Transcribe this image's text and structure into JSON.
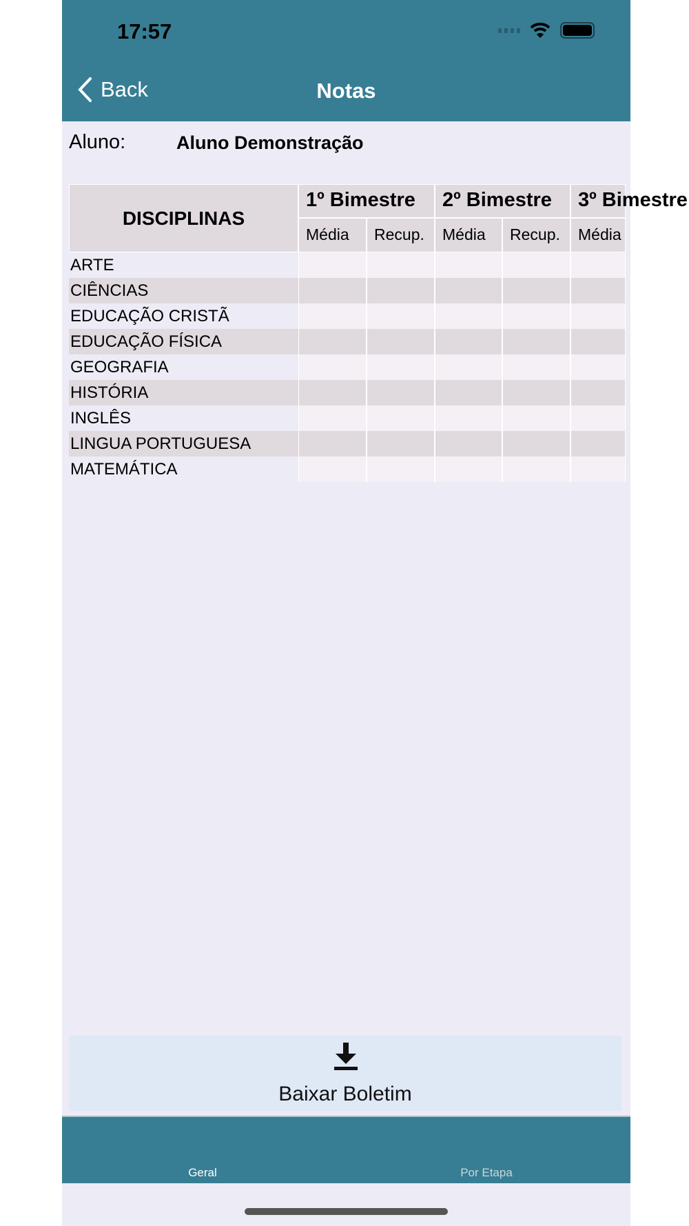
{
  "status_bar": {
    "time": "17:57"
  },
  "nav": {
    "back_label": "Back",
    "title": "Notas"
  },
  "student": {
    "label": "Aluno:",
    "name": "Aluno Demonstração"
  },
  "table": {
    "disciplinas_header": "DISCIPLINAS",
    "periods": [
      "1º Bimestre",
      "2º Bimestre",
      "3º Bimestre"
    ],
    "sub_headers": [
      "Média",
      "Recup.",
      "Média",
      "Recup.",
      "Média"
    ],
    "rows": [
      "ARTE",
      "CIÊNCIAS",
      "EDUCAÇÃO CRISTÃ",
      "EDUCAÇÃO FÍSICA",
      "GEOGRAFIA",
      "HISTÓRIA",
      "INGLÊS",
      "LINGUA PORTUGUESA",
      "MATEMÁTICA"
    ]
  },
  "download": {
    "label": "Baixar Boletim",
    "icon": "download-icon"
  },
  "tabs": [
    {
      "label": "Geral",
      "active": true
    },
    {
      "label": "Por Etapa",
      "active": false
    }
  ],
  "colors": {
    "brand": "#377E94",
    "background": "#EDEBF5",
    "button": "#DFE8F5"
  }
}
